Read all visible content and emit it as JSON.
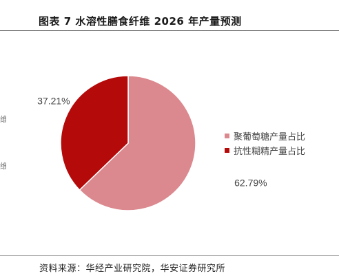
{
  "header": {
    "title": "图表 7 水溶性膳食纤维 2026 年产量预测"
  },
  "footer": {
    "source": "资料来源：华经产业研究院，华安证券研究所"
  },
  "left_fragments": [
    "维",
    "维"
  ],
  "colors": {
    "glucose": "#db888e",
    "resistant_dextrin": "#b50a0a"
  },
  "chart_data": {
    "type": "pie",
    "title": "",
    "labels": [
      "聚葡萄糖产量占比",
      "抗性糊精产量占比"
    ],
    "values": [
      62.79,
      37.21
    ],
    "value_labels": [
      "62.79%",
      "37.21%"
    ],
    "colors": [
      "#db888e",
      "#b50a0a"
    ],
    "legend_position": "right"
  }
}
